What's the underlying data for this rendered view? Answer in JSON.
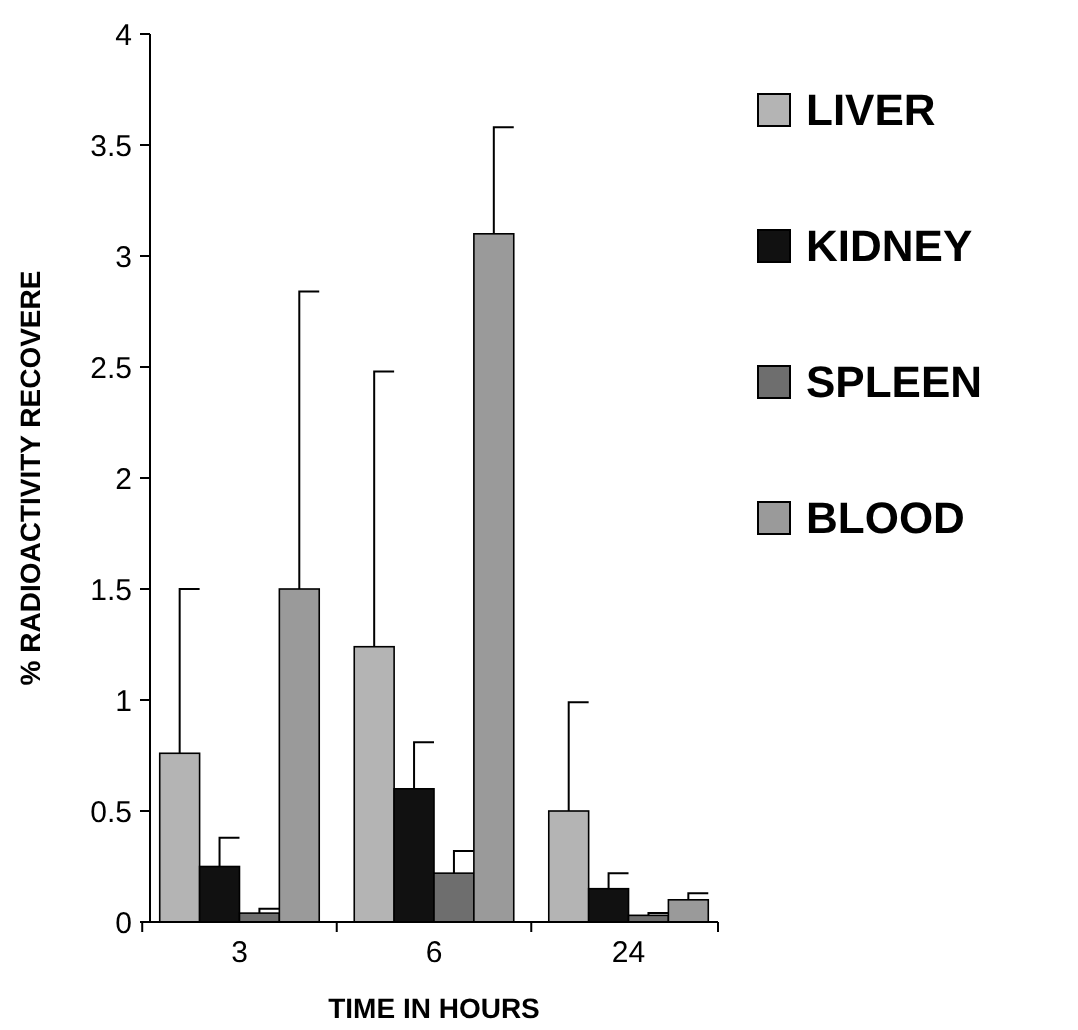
{
  "chart_data": {
    "type": "bar",
    "xlabel": "TIME IN HOURS",
    "ylabel": "% RADIOACTIVITY RECOVERE",
    "categories": [
      "3",
      "6",
      "24"
    ],
    "ylim": [
      0,
      4
    ],
    "yticks": [
      0,
      0.5,
      1,
      1.5,
      2,
      2.5,
      3,
      3.5,
      4
    ],
    "grid": false,
    "legend": "right",
    "series": [
      {
        "name": "LIVER",
        "color": "#b4b4b4",
        "values": [
          0.76,
          1.24,
          0.5
        ],
        "errors": [
          [
            0.76,
            1.5
          ],
          [
            1.24,
            2.48
          ],
          [
            0.5,
            0.99
          ]
        ]
      },
      {
        "name": "KIDNEY",
        "color": "#111111",
        "values": [
          0.25,
          0.6,
          0.15
        ],
        "errors": [
          [
            0.25,
            0.38
          ],
          [
            0.6,
            0.81
          ],
          [
            0.15,
            0.22
          ]
        ]
      },
      {
        "name": "SPLEEN",
        "color": "#6e6e6e",
        "values": [
          0.04,
          0.22,
          0.03
        ],
        "errors": [
          [
            0.04,
            0.06
          ],
          [
            0.22,
            0.32
          ],
          [
            0.03,
            0.04
          ]
        ]
      },
      {
        "name": "BLOOD",
        "color": "#9a9a9a",
        "values": [
          1.5,
          3.1,
          0.1
        ],
        "errors": [
          [
            1.5,
            2.84
          ],
          [
            3.1,
            3.58
          ],
          [
            0.1,
            0.13
          ]
        ]
      }
    ]
  }
}
